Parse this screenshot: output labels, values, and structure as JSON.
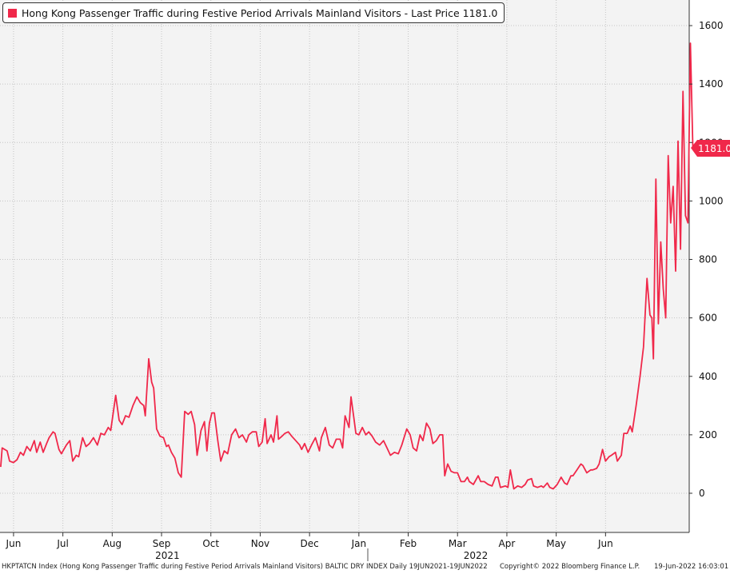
{
  "chart_data": {
    "type": "line",
    "title": "Hong Kong Passenger Traffic during Festive Period Arrivals Mainland Visitors",
    "legend": "Hong Kong Passenger Traffic during Festive Period Arrivals Mainland Visitors - Last Price 1181.0",
    "series_color": "#f0284a",
    "ylim": [
      -130,
      1680
    ],
    "yticks": [
      0,
      200,
      400,
      600,
      800,
      1000,
      1200,
      1400,
      1600
    ],
    "last_price": 1181.0,
    "last_price_label": "1181.0",
    "months": [
      {
        "label": "Jun",
        "x": 0.08
      },
      {
        "label": "Jul",
        "x": 1.08
      },
      {
        "label": "Aug",
        "x": 2.08
      },
      {
        "label": "Sep",
        "x": 3.08
      },
      {
        "label": "Oct",
        "x": 4.08
      },
      {
        "label": "Nov",
        "x": 5.08
      },
      {
        "label": "Dec",
        "x": 6.08
      },
      {
        "label": "Jan",
        "x": 7.08
      },
      {
        "label": "Feb",
        "x": 8.08
      },
      {
        "label": "Mar",
        "x": 9.08
      },
      {
        "label": "Apr",
        "x": 10.08
      },
      {
        "label": "May",
        "x": 11.08
      },
      {
        "label": "Jun",
        "x": 12.08
      }
    ],
    "years": [
      {
        "label": "2021",
        "x": 3.2
      },
      {
        "label": "2022",
        "x": 9.45
      }
    ],
    "points": [
      [
        -0.18,
        90
      ],
      [
        -0.15,
        155
      ],
      [
        -0.05,
        145
      ],
      [
        0.0,
        110
      ],
      [
        0.08,
        105
      ],
      [
        0.15,
        115
      ],
      [
        0.22,
        140
      ],
      [
        0.28,
        130
      ],
      [
        0.35,
        160
      ],
      [
        0.42,
        145
      ],
      [
        0.5,
        180
      ],
      [
        0.55,
        140
      ],
      [
        0.62,
        175
      ],
      [
        0.68,
        140
      ],
      [
        0.75,
        170
      ],
      [
        0.8,
        190
      ],
      [
        0.88,
        210
      ],
      [
        0.92,
        205
      ],
      [
        1.0,
        150
      ],
      [
        1.05,
        135
      ],
      [
        1.15,
        165
      ],
      [
        1.22,
        180
      ],
      [
        1.28,
        110
      ],
      [
        1.35,
        130
      ],
      [
        1.4,
        125
      ],
      [
        1.48,
        190
      ],
      [
        1.55,
        160
      ],
      [
        1.62,
        170
      ],
      [
        1.7,
        190
      ],
      [
        1.78,
        165
      ],
      [
        1.85,
        205
      ],
      [
        1.92,
        200
      ],
      [
        2.0,
        225
      ],
      [
        2.05,
        215
      ],
      [
        2.15,
        335
      ],
      [
        2.22,
        250
      ],
      [
        2.28,
        235
      ],
      [
        2.35,
        265
      ],
      [
        2.42,
        260
      ],
      [
        2.5,
        300
      ],
      [
        2.58,
        330
      ],
      [
        2.65,
        310
      ],
      [
        2.72,
        300
      ],
      [
        2.75,
        265
      ],
      [
        2.82,
        460
      ],
      [
        2.88,
        380
      ],
      [
        2.92,
        360
      ],
      [
        2.98,
        220
      ],
      [
        3.05,
        195
      ],
      [
        3.12,
        190
      ],
      [
        3.18,
        160
      ],
      [
        3.22,
        165
      ],
      [
        3.28,
        140
      ],
      [
        3.35,
        120
      ],
      [
        3.42,
        70
      ],
      [
        3.48,
        55
      ],
      [
        3.55,
        280
      ],
      [
        3.62,
        270
      ],
      [
        3.68,
        280
      ],
      [
        3.75,
        235
      ],
      [
        3.8,
        130
      ],
      [
        3.88,
        215
      ],
      [
        3.95,
        245
      ],
      [
        4.0,
        145
      ],
      [
        4.05,
        240
      ],
      [
        4.1,
        275
      ],
      [
        4.15,
        275
      ],
      [
        4.22,
        180
      ],
      [
        4.28,
        110
      ],
      [
        4.35,
        145
      ],
      [
        4.42,
        135
      ],
      [
        4.5,
        200
      ],
      [
        4.58,
        220
      ],
      [
        4.65,
        190
      ],
      [
        4.72,
        200
      ],
      [
        4.8,
        175
      ],
      [
        4.85,
        200
      ],
      [
        4.92,
        210
      ],
      [
        5.0,
        210
      ],
      [
        5.05,
        160
      ],
      [
        5.12,
        175
      ],
      [
        5.18,
        255
      ],
      [
        5.22,
        170
      ],
      [
        5.3,
        200
      ],
      [
        5.35,
        175
      ],
      [
        5.42,
        265
      ],
      [
        5.45,
        185
      ],
      [
        5.52,
        195
      ],
      [
        5.58,
        205
      ],
      [
        5.65,
        210
      ],
      [
        5.72,
        195
      ],
      [
        5.8,
        180
      ],
      [
        5.88,
        165
      ],
      [
        5.92,
        150
      ],
      [
        5.98,
        170
      ],
      [
        6.05,
        140
      ],
      [
        6.12,
        165
      ],
      [
        6.2,
        190
      ],
      [
        6.28,
        145
      ],
      [
        6.32,
        190
      ],
      [
        6.4,
        225
      ],
      [
        6.48,
        165
      ],
      [
        6.55,
        155
      ],
      [
        6.62,
        185
      ],
      [
        6.7,
        185
      ],
      [
        6.75,
        155
      ],
      [
        6.8,
        265
      ],
      [
        6.88,
        225
      ],
      [
        6.92,
        330
      ],
      [
        6.98,
        255
      ],
      [
        7.02,
        205
      ],
      [
        7.08,
        200
      ],
      [
        7.15,
        225
      ],
      [
        7.22,
        200
      ],
      [
        7.28,
        210
      ],
      [
        7.35,
        195
      ],
      [
        7.42,
        175
      ],
      [
        7.5,
        165
      ],
      [
        7.58,
        180
      ],
      [
        7.65,
        155
      ],
      [
        7.72,
        130
      ],
      [
        7.8,
        140
      ],
      [
        7.88,
        135
      ],
      [
        7.95,
        165
      ],
      [
        8.05,
        220
      ],
      [
        8.12,
        200
      ],
      [
        8.18,
        155
      ],
      [
        8.25,
        145
      ],
      [
        8.32,
        200
      ],
      [
        8.38,
        180
      ],
      [
        8.45,
        240
      ],
      [
        8.52,
        220
      ],
      [
        8.58,
        170
      ],
      [
        8.65,
        180
      ],
      [
        8.72,
        200
      ],
      [
        8.78,
        200
      ],
      [
        8.82,
        60
      ],
      [
        8.88,
        100
      ],
      [
        8.95,
        75
      ],
      [
        9.02,
        70
      ],
      [
        9.08,
        70
      ],
      [
        9.15,
        40
      ],
      [
        9.22,
        40
      ],
      [
        9.28,
        55
      ],
      [
        9.32,
        40
      ],
      [
        9.4,
        30
      ],
      [
        9.45,
        45
      ],
      [
        9.5,
        60
      ],
      [
        9.55,
        40
      ],
      [
        9.62,
        40
      ],
      [
        9.7,
        30
      ],
      [
        9.78,
        25
      ],
      [
        9.85,
        55
      ],
      [
        9.9,
        55
      ],
      [
        9.95,
        20
      ],
      [
        10.05,
        25
      ],
      [
        10.1,
        20
      ],
      [
        10.15,
        80
      ],
      [
        10.22,
        15
      ],
      [
        10.3,
        25
      ],
      [
        10.38,
        20
      ],
      [
        10.45,
        30
      ],
      [
        10.5,
        45
      ],
      [
        10.58,
        50
      ],
      [
        10.62,
        25
      ],
      [
        10.7,
        20
      ],
      [
        10.78,
        25
      ],
      [
        10.82,
        20
      ],
      [
        10.9,
        35
      ],
      [
        10.95,
        20
      ],
      [
        11.02,
        15
      ],
      [
        11.1,
        30
      ],
      [
        11.18,
        55
      ],
      [
        11.25,
        35
      ],
      [
        11.3,
        30
      ],
      [
        11.38,
        60
      ],
      [
        11.42,
        60
      ],
      [
        11.5,
        80
      ],
      [
        11.58,
        100
      ],
      [
        11.62,
        95
      ],
      [
        11.7,
        70
      ],
      [
        11.78,
        80
      ],
      [
        11.82,
        80
      ],
      [
        11.9,
        85
      ],
      [
        11.95,
        100
      ],
      [
        12.02,
        150
      ],
      [
        12.08,
        110
      ],
      [
        12.15,
        125
      ],
      [
        12.2,
        130
      ],
      [
        12.28,
        140
      ],
      [
        12.32,
        110
      ],
      [
        12.4,
        130
      ],
      [
        12.45,
        205
      ],
      [
        12.52,
        205
      ],
      [
        12.58,
        230
      ],
      [
        12.62,
        210
      ],
      [
        12.7,
        300
      ],
      [
        12.78,
        400
      ],
      [
        12.85,
        500
      ],
      [
        12.92,
        735
      ],
      [
        12.98,
        610
      ],
      [
        13.02,
        600
      ],
      [
        13.05,
        460
      ],
      [
        13.1,
        1075
      ],
      [
        13.15,
        580
      ],
      [
        13.2,
        860
      ],
      [
        13.25,
        700
      ],
      [
        13.3,
        600
      ],
      [
        13.35,
        1155
      ],
      [
        13.4,
        925
      ],
      [
        13.45,
        1050
      ],
      [
        13.5,
        760
      ],
      [
        13.55,
        1205
      ],
      [
        13.6,
        835
      ],
      [
        13.65,
        1375
      ],
      [
        13.7,
        950
      ],
      [
        13.75,
        925
      ],
      [
        13.8,
        1540
      ],
      [
        13.85,
        1185
      ]
    ]
  },
  "footer": {
    "left": "HKPTATCN Index (Hong Kong Passenger Traffic during Festive Period Arrivals Mainland Visitors) BALTIC DRY INDEX  Daily 19JUN2021-19JUN2022",
    "copyright": "Copyright© 2022 Bloomberg Finance L.P.",
    "timestamp": "19-Jun-2022 16:03:01"
  }
}
